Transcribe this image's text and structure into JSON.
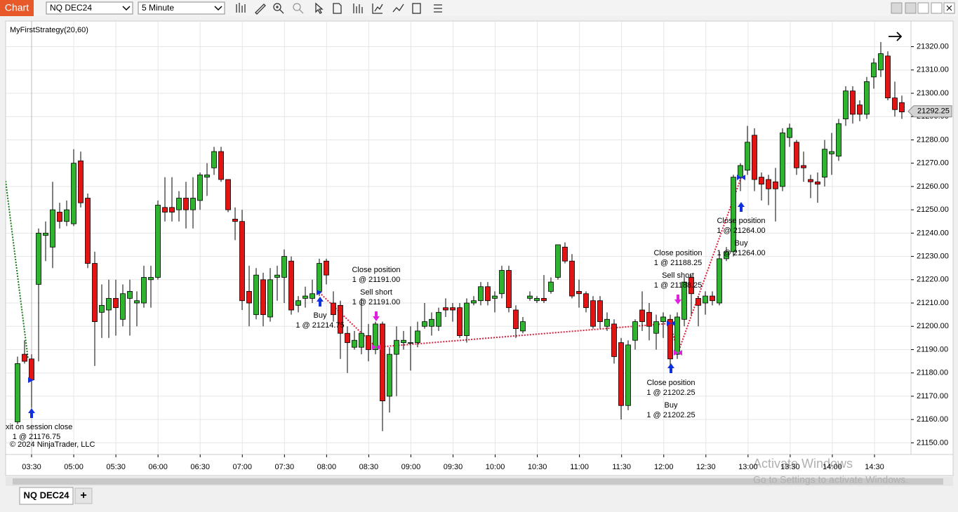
{
  "toolbar": {
    "app_label": "Chart",
    "instrument": "NQ DEC24",
    "interval": "5 Minute"
  },
  "tabs": {
    "active": "NQ DEC24",
    "add": "+"
  },
  "chart": {
    "type": "candlestick",
    "indicator_label": "MyFirstStrategy(20,60)",
    "copyright": "© 2024 NinjaTrader, LLC",
    "up_color": "#2fb42f",
    "down_color": "#e31414",
    "ylim": [
      21145,
      21331
    ],
    "yticks": [
      {
        "value": 21150,
        "label": "21150.00"
      },
      {
        "value": 21160,
        "label": "21160.00"
      },
      {
        "value": 21170,
        "label": "21170.00"
      },
      {
        "value": 21180,
        "label": "21180.00"
      },
      {
        "value": 21190,
        "label": "21190.00"
      },
      {
        "value": 21200,
        "label": "21200.00"
      },
      {
        "value": 21210,
        "label": "21210.00"
      },
      {
        "value": 21220,
        "label": "21220.00"
      },
      {
        "value": 21230,
        "label": "21230.00"
      },
      {
        "value": 21240,
        "label": "21240.00"
      },
      {
        "value": 21250,
        "label": "21250.00"
      },
      {
        "value": 21260,
        "label": "21260.00"
      },
      {
        "value": 21270,
        "label": "21270.00"
      },
      {
        "value": 21280,
        "label": "21280.00"
      },
      {
        "value": 21290,
        "label": "21290.00"
      },
      {
        "value": 21300,
        "label": "21300.00"
      },
      {
        "value": 21310,
        "label": "21310.00"
      },
      {
        "value": 21320,
        "label": "21320.00"
      }
    ],
    "xticks": [
      "03:30",
      "05:00",
      "05:30",
      "06:00",
      "06:30",
      "07:00",
      "07:30",
      "08:00",
      "08:30",
      "09:00",
      "09:30",
      "10:00",
      "10:30",
      "11:00",
      "11:30",
      "12:00",
      "12:30",
      "13:00",
      "13:30",
      "14:00",
      "14:30"
    ],
    "last_price": {
      "value": 21292.25,
      "label": "21292.25"
    },
    "ohlc": [
      [
        21159,
        21187,
        21158,
        21184
      ],
      [
        21188,
        21194,
        21184,
        21185
      ],
      [
        21186,
        21188,
        21165,
        21177
      ],
      [
        21218,
        21242,
        21185,
        21240
      ],
      [
        21239,
        21245,
        21228,
        21240
      ],
      [
        21234,
        21262,
        21225,
        21250
      ],
      [
        21249,
        21253,
        21242,
        21245
      ],
      [
        21245,
        21254,
        21243,
        21250
      ],
      [
        21244,
        21276,
        21243,
        21270
      ],
      [
        21271,
        21275,
        21251,
        21253
      ],
      [
        21255,
        21257,
        21225,
        21227
      ],
      [
        21227,
        21232,
        21183,
        21202
      ],
      [
        21206,
        21218,
        21195,
        21209
      ],
      [
        21207,
        21220,
        21195,
        21212
      ],
      [
        21212,
        21220,
        21196,
        21208
      ],
      [
        21203,
        21218,
        21200,
        21214
      ],
      [
        21212,
        21220,
        21196,
        21215
      ],
      [
        21210,
        21215,
        21200,
        21211
      ],
      [
        21210,
        21226,
        21208,
        21221
      ],
      [
        21220,
        21226,
        21208,
        21221
      ],
      [
        21221,
        21254,
        21220,
        21252
      ],
      [
        21251,
        21264,
        21245,
        21249
      ],
      [
        21251,
        21264,
        21245,
        21249
      ],
      [
        21250,
        21258,
        21245,
        21255
      ],
      [
        21255,
        21262,
        21242,
        21250
      ],
      [
        21250,
        21264,
        21242,
        21255
      ],
      [
        21254,
        21266,
        21250,
        21265
      ],
      [
        21264,
        21270,
        21256,
        21265
      ],
      [
        21268,
        21277,
        21265,
        21275
      ],
      [
        21275,
        21277,
        21262,
        21263
      ],
      [
        21263,
        21263,
        21249,
        21250
      ],
      [
        21246,
        21251,
        21237,
        21245
      ],
      [
        21245,
        21250,
        21207,
        21211
      ],
      [
        21215,
        21226,
        21200,
        21210
      ],
      [
        21205,
        21225,
        21203,
        21222
      ],
      [
        21220,
        21223,
        21200,
        21205
      ],
      [
        21204,
        21225,
        21202,
        21220
      ],
      [
        21221,
        21226,
        21211,
        21222
      ],
      [
        21221,
        21233,
        21210,
        21230
      ],
      [
        21228,
        21230,
        21205,
        21207
      ],
      [
        21209,
        21213,
        21206,
        21211
      ],
      [
        21212,
        21217,
        21208,
        21213
      ],
      [
        21212,
        21220,
        21210,
        21214
      ],
      [
        21215,
        21229,
        21213,
        21227
      ],
      [
        21228,
        21229,
        21218,
        21222
      ],
      [
        21210,
        21215,
        21202,
        21205
      ],
      [
        21209,
        21211,
        21186,
        21197
      ],
      [
        21197,
        21200,
        21180,
        21193
      ],
      [
        21191,
        21198,
        21190,
        21194
      ],
      [
        21191,
        21212,
        21188,
        21197
      ],
      [
        21196,
        21201,
        21185,
        21190
      ],
      [
        21190,
        21202,
        21188,
        21201
      ],
      [
        21201,
        21202,
        21155,
        21168
      ],
      [
        21170,
        21191,
        21163,
        21188
      ],
      [
        21188,
        21200,
        21170,
        21194
      ],
      [
        21193,
        21198,
        21190,
        21194
      ],
      [
        21193,
        21200,
        21181,
        21193
      ],
      [
        21193,
        21202,
        21191,
        21198
      ],
      [
        21200,
        21210,
        21199,
        21202
      ],
      [
        21200,
        21206,
        21196,
        21203
      ],
      [
        21200,
        21208,
        21198,
        21206
      ],
      [
        21208,
        21212,
        21204,
        21207
      ],
      [
        21208,
        21210,
        21202,
        21207
      ],
      [
        21208,
        21210,
        21195,
        21196
      ],
      [
        21196,
        21212,
        21193,
        21210
      ],
      [
        21210,
        21213,
        21209,
        21211
      ],
      [
        21211,
        21219,
        21209,
        21217
      ],
      [
        21217,
        21219,
        21209,
        21211
      ],
      [
        21212,
        21215,
        21206,
        21213
      ],
      [
        21214,
        21226,
        21212,
        21224
      ],
      [
        21224,
        21226,
        21206,
        21208
      ],
      [
        21207,
        21209,
        21195,
        21199
      ],
      [
        21198,
        21204,
        21197,
        21202
      ],
      [
        21212,
        21215,
        21211,
        21213
      ],
      [
        21211,
        21213,
        21210,
        21212
      ],
      [
        21212,
        21222,
        21210,
        21211
      ],
      [
        21215,
        21221,
        21214,
        21219
      ],
      [
        21221,
        21235,
        21220,
        21235
      ],
      [
        21234,
        21236,
        21227,
        21228
      ],
      [
        21228,
        21231,
        21212,
        21213
      ],
      [
        21215,
        21220,
        21208,
        21214
      ],
      [
        21214,
        21215,
        21206,
        21208
      ],
      [
        21211,
        21213,
        21199,
        21200
      ],
      [
        21211,
        21213,
        21199,
        21202
      ],
      [
        21200,
        21206,
        21198,
        21203
      ],
      [
        21201,
        21203,
        21184,
        21187
      ],
      [
        21193,
        21195,
        21160,
        21166
      ],
      [
        21166,
        21194,
        21164,
        21192
      ],
      [
        21194,
        21203,
        21190,
        21202
      ],
      [
        21207,
        21215,
        21198,
        21202
      ],
      [
        21206,
        21210,
        21194,
        21200
      ],
      [
        21197,
        21205,
        21190,
        21202
      ],
      [
        21202,
        21206,
        21195,
        21204
      ],
      [
        21203,
        21205,
        21183,
        21186
      ],
      [
        21188,
        21206,
        21186,
        21204
      ],
      [
        21203,
        21221,
        21200,
        21219
      ],
      [
        21221,
        21222,
        21205,
        21214
      ],
      [
        21212,
        21213,
        21200,
        21209
      ],
      [
        21210,
        21215,
        21205,
        21213
      ],
      [
        21213,
        21215,
        21209,
        21211
      ],
      [
        21210,
        21232,
        21209,
        21229
      ],
      [
        21229,
        21234,
        21228,
        21232
      ],
      [
        21232,
        21265,
        21230,
        21264
      ],
      [
        21264,
        21270,
        21258,
        21269
      ],
      [
        21267,
        21286,
        21265,
        21279
      ],
      [
        21282,
        21285,
        21258,
        21263
      ],
      [
        21264,
        21266,
        21254,
        21261
      ],
      [
        21263,
        21265,
        21252,
        21259
      ],
      [
        21262,
        21268,
        21245,
        21259
      ],
      [
        21260,
        21285,
        21258,
        21283
      ],
      [
        21281,
        21287,
        21277,
        21285
      ],
      [
        21279,
        21280,
        21265,
        21268
      ],
      [
        21269,
        21275,
        21262,
        21268
      ],
      [
        21263,
        21265,
        21255,
        21262
      ],
      [
        21262,
        21266,
        21253,
        21261
      ],
      [
        21264,
        21280,
        21260,
        21276
      ],
      [
        21274,
        21283,
        21265,
        21275
      ],
      [
        21273,
        21289,
        21271,
        21287
      ],
      [
        21289,
        21303,
        21286,
        21301
      ],
      [
        21301,
        21303,
        21287,
        21291
      ],
      [
        21295,
        21297,
        21288,
        21291
      ],
      [
        21291,
        21307,
        21289,
        21305
      ],
      [
        21307,
        21315,
        21302,
        21313
      ],
      [
        21310,
        21322,
        21307,
        21317
      ],
      [
        21316,
        21318,
        21297,
        21298
      ],
      [
        21298,
        21305,
        21290,
        21293
      ],
      [
        21296,
        21299,
        21289,
        21292
      ]
    ],
    "executions": [
      {
        "label": "Exit on session close",
        "detail": "1 @ 21176.75"
      },
      {
        "label": "Buy",
        "detail": "1 @ 21214.75"
      },
      {
        "label": "Close position",
        "detail": "1 @ 21191.00"
      },
      {
        "label": "Sell short",
        "detail": "1 @ 21191.00"
      },
      {
        "label": "Close position",
        "detail": "1 @ 21188.25"
      },
      {
        "label": "Sell short",
        "detail": "1 @ 21188.25"
      },
      {
        "label": "Close position",
        "detail": "1 @ 21202.25"
      },
      {
        "label": "Buy",
        "detail": "1 @ 21202.25"
      },
      {
        "label": "Close position",
        "detail": "1 @ 21264.00"
      },
      {
        "label": "Buy",
        "detail": "1 @ 21264.00"
      }
    ]
  },
  "watermark": {
    "title": "Activate Windows",
    "subtitle": "Go to Settings to activate Windows."
  }
}
